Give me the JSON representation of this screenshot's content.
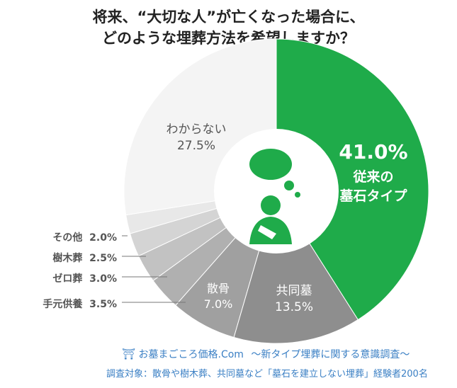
{
  "chart_data": {
    "type": "pie",
    "title_lines": [
      "将来、“大切な人”が亡くなった場合に、",
      "どのような埋葬方法を希望しますか？"
    ],
    "donut": true,
    "start": "top",
    "direction": "clockwise",
    "slices": [
      {
        "label": "従来の墓石タイプ",
        "value": 41.0,
        "display": "41.0%",
        "color": "#1fab4a"
      },
      {
        "label": "共同墓",
        "value": 13.5,
        "display": "13.5%",
        "color": "#8e8e8e"
      },
      {
        "label": "散骨",
        "value": 7.0,
        "display": "7.0%",
        "color": "#a0a0a0"
      },
      {
        "label": "手元供養",
        "value": 3.5,
        "display": "3.5%",
        "color": "#b0b0b0"
      },
      {
        "label": "ゼロ葬",
        "value": 3.0,
        "display": "3.0%",
        "color": "#c2c2c2"
      },
      {
        "label": "樹木葬",
        "value": 2.5,
        "display": "2.5%",
        "color": "#d4d4d4"
      },
      {
        "label": "その他",
        "value": 2.0,
        "display": "2.0%",
        "color": "#e8e8e8"
      },
      {
        "label": "わからない",
        "value": 27.5,
        "display": "27.5%",
        "color": "#f4f4f4"
      }
    ],
    "center_icon": "thinking-person-icon"
  },
  "labels": {
    "green_pct": "41.0%",
    "green_line1": "従来の",
    "green_line2": "墓石タイプ"
  },
  "footer": {
    "brand": "お墓まごころ価格.Com",
    "subtitle": "～新タイプ埋葬に関する意識調査～",
    "note": "調査対象：散骨や樹木葬、共同墓など「墓石を建立しない埋葬」経験者200名"
  }
}
